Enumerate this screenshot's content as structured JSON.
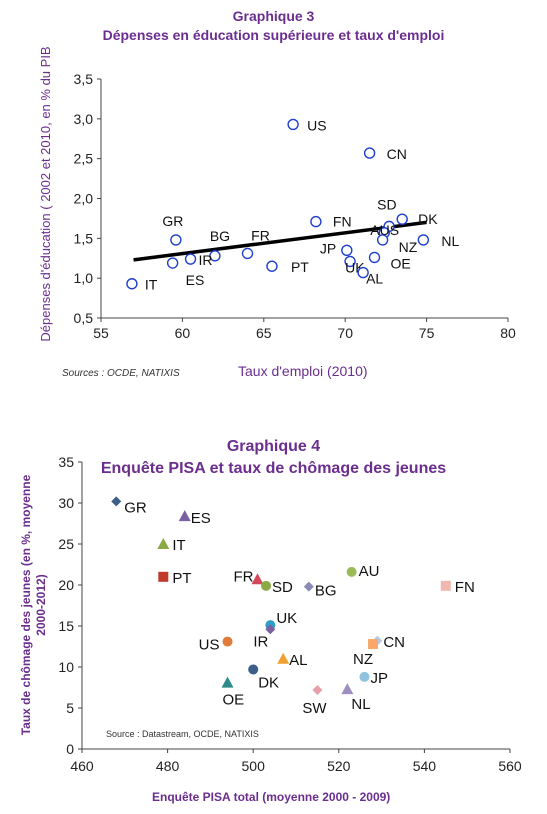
{
  "chart_data": [
    {
      "type": "scatter",
      "title": "Graphique  3",
      "subtitle": "Dépenses en éducation supérieure et taux d'emploi",
      "xlabel": "Taux d'emploi (2010)",
      "ylabel": "Dépenses d'éducation ( 2002 et 2010, en % du PIB",
      "source": "Sources : OCDE, NATIXIS",
      "xlim": [
        55,
        80
      ],
      "ylim": [
        0.5,
        3.5
      ],
      "xticks": [
        "55",
        "60",
        "65",
        "70",
        "75",
        "80"
      ],
      "yticks": [
        "0,5",
        "1,0",
        "1,5",
        "2,0",
        "2,5",
        "3,0",
        "3,5"
      ],
      "grid": false,
      "points": [
        {
          "label": "US",
          "x": 66.8,
          "y": 2.93
        },
        {
          "label": "CN",
          "x": 71.5,
          "y": 2.57
        },
        {
          "label": "GR",
          "x": 59.6,
          "y": 1.48
        },
        {
          "label": "BG",
          "x": 62.0,
          "y": 1.28
        },
        {
          "label": "FR",
          "x": 64.0,
          "y": 1.31
        },
        {
          "label": "FN",
          "x": 68.2,
          "y": 1.71
        },
        {
          "label": "SD",
          "x": 72.7,
          "y": 1.65
        },
        {
          "label": "DK",
          "x": 73.5,
          "y": 1.74
        },
        {
          "label": "AUS",
          "x": 72.4,
          "y": 1.57
        },
        {
          "label": "NZ",
          "x": 72.3,
          "y": 1.48
        },
        {
          "label": "NL",
          "x": 74.8,
          "y": 1.48
        },
        {
          "label": "JP",
          "x": 70.1,
          "y": 1.35
        },
        {
          "label": "UK",
          "x": 70.3,
          "y": 1.21
        },
        {
          "label": "OE",
          "x": 71.8,
          "y": 1.26
        },
        {
          "label": "AL",
          "x": 71.1,
          "y": 1.07
        },
        {
          "label": "PT",
          "x": 65.5,
          "y": 1.15
        },
        {
          "label": "IR",
          "x": 60.5,
          "y": 1.24
        },
        {
          "label": "ES",
          "x": 59.4,
          "y": 1.19
        },
        {
          "label": "IT",
          "x": 56.9,
          "y": 0.93
        }
      ],
      "trendline": {
        "x": [
          57,
          75
        ],
        "y": [
          1.23,
          1.7
        ]
      }
    },
    {
      "type": "scatter",
      "title": "Graphique 4",
      "subtitle": "Enquête PISA et taux de chômage des jeunes",
      "xlabel": "Enquête PISA total (moyenne 2000 - 2009)",
      "ylabel": "Taux de chômage des jeunes (en %, moyenne 2000-2012)",
      "source": "Source : Datastream, OCDE, NATIXIS",
      "xlim": [
        460,
        560
      ],
      "ylim": [
        0,
        35
      ],
      "xticks": [
        "460",
        "480",
        "500",
        "520",
        "540",
        "560"
      ],
      "yticks": [
        "0",
        "5",
        "10",
        "15",
        "20",
        "25",
        "30",
        "35"
      ],
      "grid": false,
      "points": [
        {
          "label": "GR",
          "x": 468,
          "y": 30.2,
          "marker": "diamond",
          "color": "#3b5f8a"
        },
        {
          "label": "ES",
          "x": 484,
          "y": 28.4,
          "marker": "triangle",
          "color": "#7b5fa0"
        },
        {
          "label": "IT",
          "x": 479,
          "y": 25.0,
          "marker": "triangle",
          "color": "#8aaa45"
        },
        {
          "label": "PT",
          "x": 479,
          "y": 21.0,
          "marker": "square",
          "color": "#c0392b"
        },
        {
          "label": "FR",
          "x": 501,
          "y": 20.7,
          "marker": "triangle",
          "color": "#d24a5a"
        },
        {
          "label": "SD",
          "x": 503,
          "y": 19.9,
          "marker": "circle",
          "color": "#8aaa45"
        },
        {
          "label": "BG",
          "x": 513,
          "y": 19.8,
          "marker": "diamond",
          "color": "#8a8ab5"
        },
        {
          "label": "AU",
          "x": 523,
          "y": 21.6,
          "marker": "circle",
          "color": "#9bbb59"
        },
        {
          "label": "FN",
          "x": 545,
          "y": 19.9,
          "marker": "square",
          "color": "#f2b8b0"
        },
        {
          "label": "UK",
          "x": 504,
          "y": 15.1,
          "marker": "circle",
          "color": "#2e9fc4"
        },
        {
          "label": "IR",
          "x": 504,
          "y": 14.6,
          "marker": "diamond",
          "color": "#7b5fa0"
        },
        {
          "label": "US",
          "x": 494,
          "y": 13.1,
          "marker": "circle",
          "color": "#e07b39"
        },
        {
          "label": "CN",
          "x": 529,
          "y": 13.2,
          "marker": "diamond",
          "color": "#b4c7e7"
        },
        {
          "label": "NZ",
          "x": 528,
          "y": 12.8,
          "marker": "square",
          "color": "#f8a86a"
        },
        {
          "label": "AL",
          "x": 507,
          "y": 11.0,
          "marker": "triangle",
          "color": "#f0a030"
        },
        {
          "label": "DK",
          "x": 500,
          "y": 9.7,
          "marker": "circle",
          "color": "#3b5f8a"
        },
        {
          "label": "OE",
          "x": 494,
          "y": 8.1,
          "marker": "triangle",
          "color": "#2e8b8b"
        },
        {
          "label": "JP",
          "x": 526,
          "y": 8.8,
          "marker": "circle",
          "color": "#8fc3e0"
        },
        {
          "label": "SW",
          "x": 515,
          "y": 7.2,
          "marker": "diamond",
          "color": "#e8a0a8"
        },
        {
          "label": "NL",
          "x": 522,
          "y": 7.3,
          "marker": "triangle",
          "color": "#9e8fc0"
        }
      ]
    }
  ]
}
